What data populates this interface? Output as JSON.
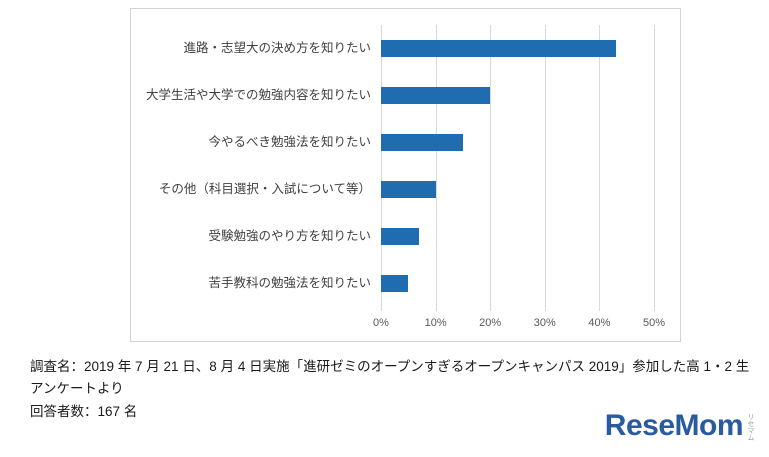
{
  "chart_data": {
    "type": "bar",
    "orientation": "horizontal",
    "title": "",
    "categories": [
      "進路・志望大の決め方を知りたい",
      "大学生活や大学での勉強内容を知りたい",
      "今やるべき勉強法を知りたい",
      "その他（科目選択・入試について等）",
      "受験勉強のやり方を知りたい",
      "苦手教科の勉強法を知りたい"
    ],
    "values": [
      43,
      20,
      15,
      10,
      7,
      5
    ],
    "xlabel": "",
    "ylabel": "",
    "xlim": [
      0,
      50
    ],
    "x_ticks": [
      "0%",
      "10%",
      "20%",
      "30%",
      "40%",
      "50%"
    ],
    "x_tick_values": [
      0,
      10,
      20,
      30,
      40,
      50
    ],
    "grid": "vertical",
    "legend": "none",
    "bar_color": "#1f6cb0",
    "gridline_color": "#d9d9d9"
  },
  "caption": {
    "line1": "調査名：2019 年 7 月 21 日、8 月 4 日実施「進研ゼミのオープンすぎるオープンキャンパス 2019」参加した高 1・2 生アンケートより",
    "line2": "回答者数：167 名"
  },
  "logo": {
    "text": "ReseMom",
    "sub": "リセマム"
  }
}
